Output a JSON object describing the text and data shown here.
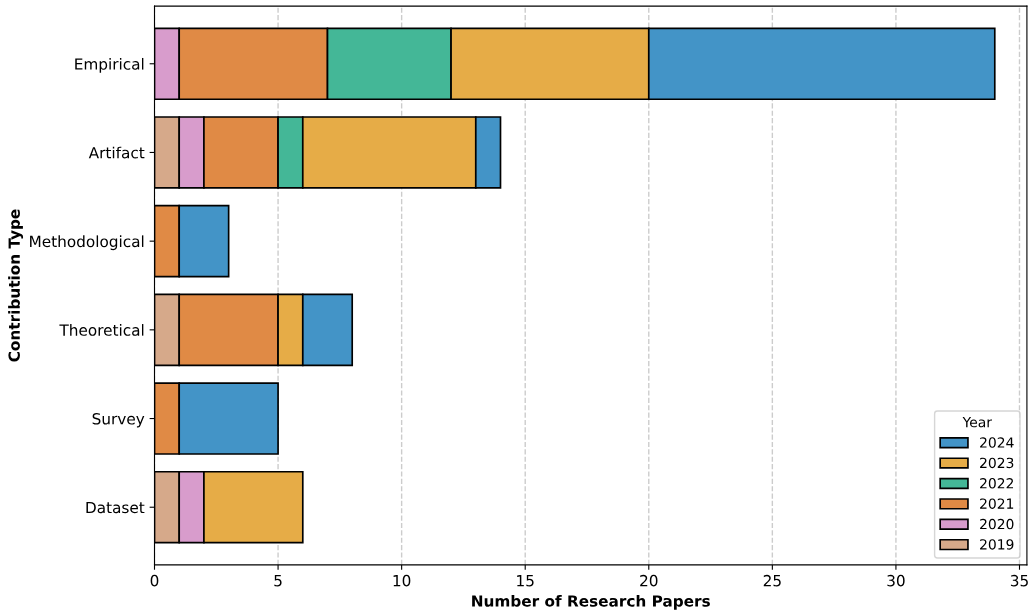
{
  "chart_data": {
    "type": "bar",
    "orientation": "horizontal",
    "stacked": true,
    "xlabel": "Number of Research Papers",
    "ylabel": "Contribution Type",
    "legend_title": "Year",
    "categories": [
      "Empirical",
      "Artifact",
      "Methodological",
      "Theoretical",
      "Survey",
      "Dataset"
    ],
    "series": [
      {
        "name": "2019",
        "color": "#d6a98a",
        "values": [
          0,
          1,
          0,
          1,
          0,
          1
        ]
      },
      {
        "name": "2020",
        "color": "#d89ccc",
        "values": [
          1,
          1,
          0,
          0,
          0,
          1
        ]
      },
      {
        "name": "2021",
        "color": "#e08a45",
        "values": [
          6,
          3,
          1,
          4,
          1,
          0
        ]
      },
      {
        "name": "2022",
        "color": "#44b797",
        "values": [
          5,
          1,
          0,
          0,
          0,
          0
        ]
      },
      {
        "name": "2023",
        "color": "#e6ac47",
        "values": [
          8,
          7,
          0,
          1,
          0,
          4
        ]
      },
      {
        "name": "2024",
        "color": "#4394c7",
        "values": [
          14,
          1,
          2,
          2,
          4,
          0
        ]
      }
    ],
    "xlim": [
      0,
      35.3
    ],
    "xticks": [
      0,
      5,
      10,
      15,
      20,
      25,
      30,
      35
    ],
    "grid": "x",
    "legend": "bottom right"
  }
}
